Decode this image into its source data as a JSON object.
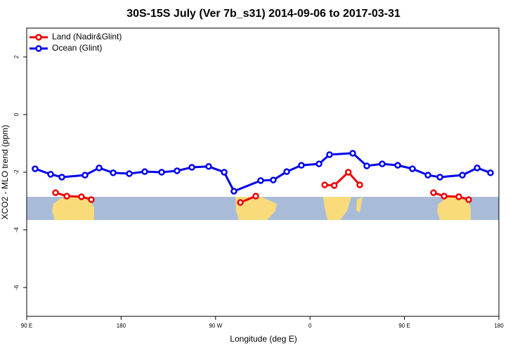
{
  "chart_data": {
    "type": "line",
    "title": "30S-15S July (Ver 7b_s31)   2014-09-06 to 2017-03-31",
    "x_label": "Longitude (deg E)",
    "y_label": "XCO2 - MLO trend (ppm)",
    "xlim": [
      90,
      540
    ],
    "ylim": [
      -7,
      3
    ],
    "xticks": [
      {
        "value": 90,
        "label": "90 E"
      },
      180,
      {
        "value": 270,
        "label": "90 W"
      },
      {
        "value": 360,
        "label": "0"
      },
      {
        "value": 450,
        "label": "90 E"
      },
      {
        "value": 540,
        "label": "180"
      }
    ],
    "yticks": [
      2,
      0,
      -2,
      -4,
      -6
    ],
    "legend": "top-left",
    "series": [
      {
        "name": "Land (Nadir&Glint)",
        "color": "#ee0000",
        "x": [
          117.5,
          128.2,
          142.2,
          151.6,
          null,
          293.6,
          308.3,
          null,
          374,
          383.1,
          396.5,
          407.4,
          null,
          477.7,
          487.8,
          501.8,
          511.2
        ],
        "values": [
          -2.71,
          -2.83,
          -2.85,
          -2.95,
          null,
          -3.05,
          -2.83,
          null,
          -2.44,
          -2.46,
          -2.0,
          -2.44,
          null,
          -2.71,
          -2.83,
          -2.85,
          -2.95
        ]
      },
      {
        "name": "Ocean (Glint)",
        "color": "#0000ee",
        "x": [
          98,
          112.8,
          123.5,
          145.6,
          159,
          172.4,
          187.8,
          202.5,
          218.6,
          233.3,
          247.4,
          263.4,
          278.2,
          287.5,
          313,
          325,
          337.8,
          351.8,
          368.6,
          378.6,
          400.7,
          414.1,
          428.8,
          443.6,
          457.6,
          472.4,
          483.8,
          505.2,
          519.3,
          532
        ],
        "values": [
          -1.88,
          -2.07,
          -2.17,
          -2.1,
          -1.85,
          -2.02,
          -2.05,
          -1.98,
          -2.0,
          -1.95,
          -1.83,
          -1.8,
          -2.0,
          -2.66,
          -2.29,
          -2.27,
          -1.98,
          -1.76,
          -1.71,
          -1.39,
          -1.34,
          -1.78,
          -1.71,
          -1.76,
          -1.88,
          -2.1,
          -2.17,
          -2.1,
          -1.85,
          -2.02
        ]
      }
    ]
  }
}
